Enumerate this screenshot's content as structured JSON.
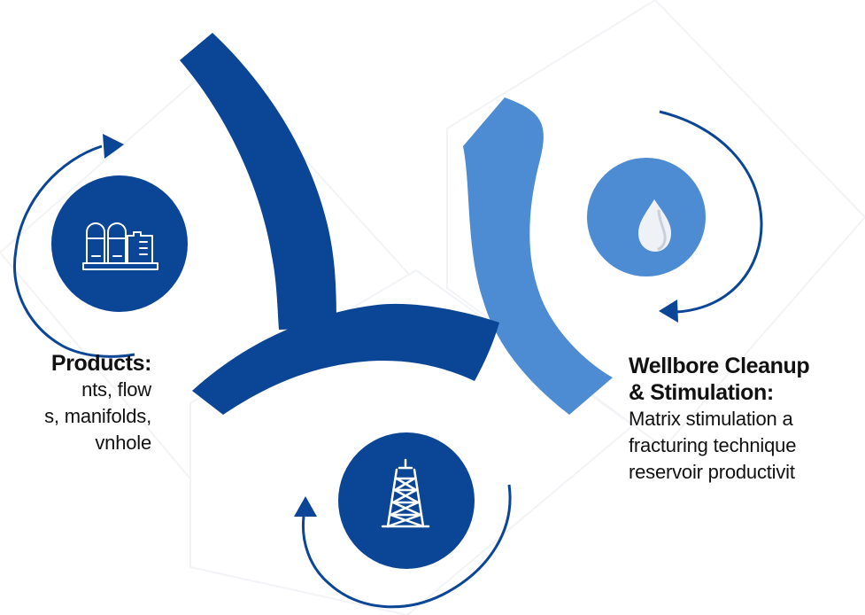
{
  "colors": {
    "dark_blue": "#0b4596",
    "light_blue": "#4d8bd3",
    "white": "#ffffff",
    "text": "#111111"
  },
  "left_item": {
    "title": "Products:",
    "description_lines": [
      "nts, flow",
      "s, manifolds,",
      "vnhole"
    ],
    "icon": "factory-tanks-icon"
  },
  "right_item": {
    "title_lines": [
      "Wellbore Cleanup",
      "& Stimulation:"
    ],
    "description_lines": [
      "Matrix stimulation a",
      "fracturing technique",
      "reservoir productivit"
    ],
    "icon": "water-drop-icon"
  },
  "bottom_item": {
    "icon": "oil-derrick-icon"
  }
}
